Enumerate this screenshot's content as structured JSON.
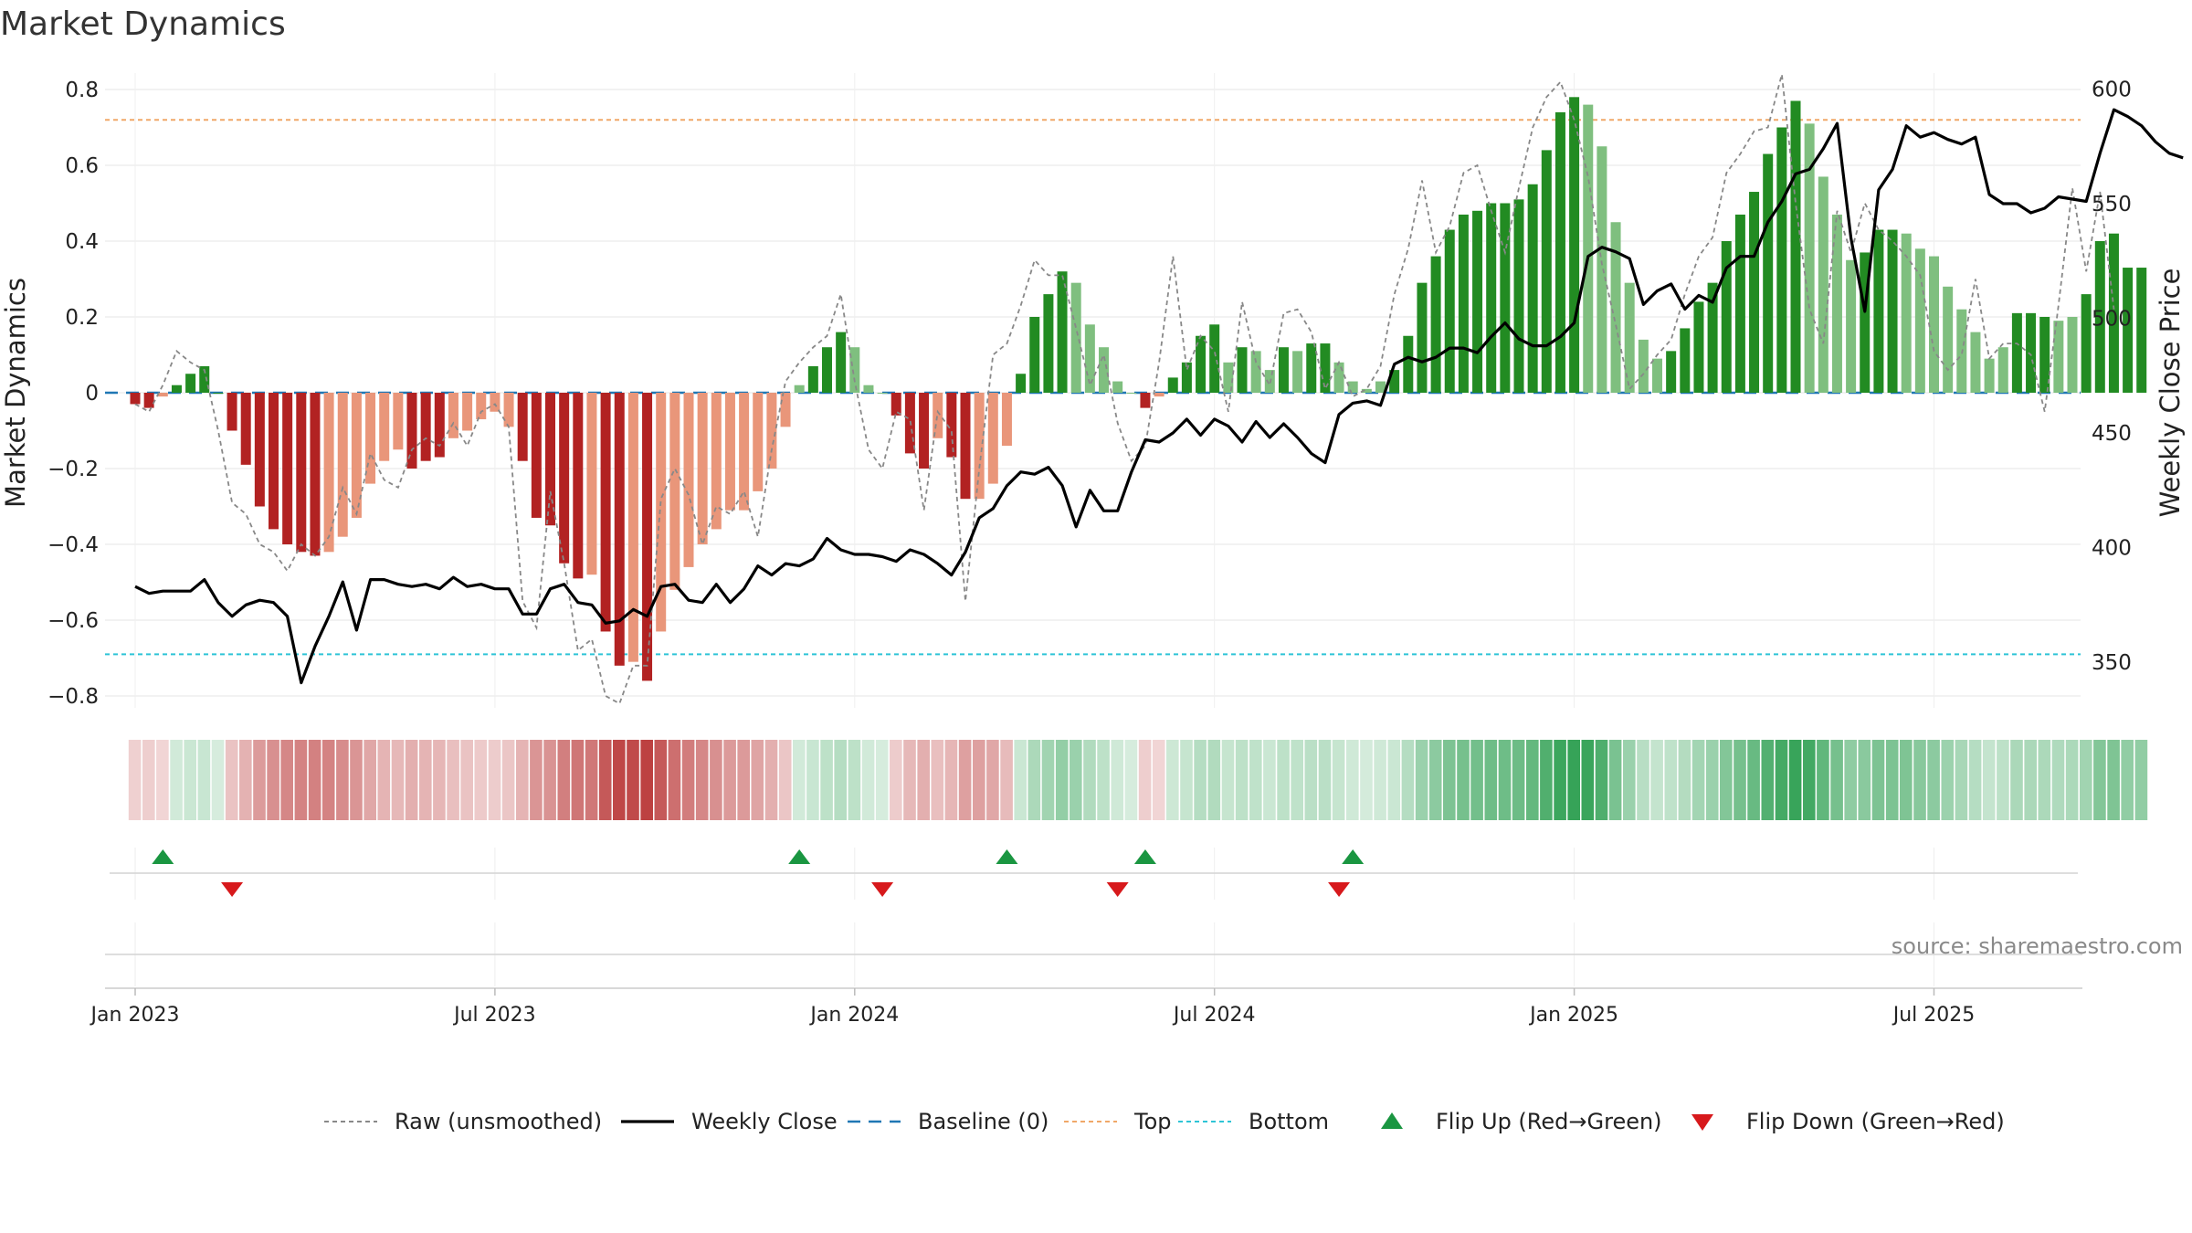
{
  "title": "Market Dynamics",
  "source": "source: sharemaestro.com",
  "chart_data": {
    "type": "bar",
    "title": "Market Dynamics",
    "ylabel": "Market Dynamics",
    "y2label": "Weekly Close Price",
    "ylim": [
      -0.85,
      0.83
    ],
    "y2lim": [
      335,
      606
    ],
    "yticks": [
      -0.8,
      -0.6,
      -0.4,
      -0.2,
      0,
      0.2,
      0.4,
      0.6,
      0.8
    ],
    "ytick_labels": [
      "−0.8",
      "−0.6",
      "−0.4",
      "−0.2",
      "0",
      "0.2",
      "0.4",
      "0.6",
      "0.8"
    ],
    "y2ticks": [
      350,
      400,
      450,
      500,
      550,
      600
    ],
    "xticks": [
      "Jan 2023",
      "Jul 2023",
      "Jan 2024",
      "Jul 2024",
      "Jan 2025",
      "Jul 2025"
    ],
    "xtick_weeks": [
      0,
      26,
      52,
      78,
      104,
      130
    ],
    "x_start": "2022-12-26",
    "top_level": 0.72,
    "bottom_level": -0.69,
    "baseline": 0,
    "grid": true,
    "legend_position": "bottom",
    "colors": {
      "strong_green": "#228B22",
      "light_green": "#7FBF7F",
      "strong_red": "#B22222",
      "light_red": "#E9967A",
      "price": "#000000",
      "raw": "#888888",
      "baseline": "#1f77b4",
      "top": "#f0a868",
      "bottom": "#2ec4d6",
      "flip_up": "#1a9641",
      "flip_down": "#d7191c"
    },
    "series": [
      {
        "name": "Market Dynamics",
        "values": [
          -0.03,
          -0.04,
          -0.01,
          0.02,
          0.05,
          0.07,
          0.0,
          -0.1,
          -0.19,
          -0.3,
          -0.36,
          -0.4,
          -0.42,
          -0.43,
          -0.42,
          -0.38,
          -0.33,
          -0.24,
          -0.18,
          -0.15,
          -0.2,
          -0.18,
          -0.17,
          -0.12,
          -0.1,
          -0.07,
          -0.05,
          -0.09,
          -0.18,
          -0.33,
          -0.35,
          -0.45,
          -0.49,
          -0.48,
          -0.63,
          -0.72,
          -0.71,
          -0.76,
          -0.63,
          -0.52,
          -0.46,
          -0.4,
          -0.36,
          -0.31,
          -0.31,
          -0.26,
          -0.2,
          -0.09,
          0.02,
          0.07,
          0.12,
          0.16,
          0.12,
          0.02,
          0.0,
          -0.06,
          -0.16,
          -0.2,
          -0.12,
          -0.17,
          -0.28,
          -0.28,
          -0.24,
          -0.14,
          0.05,
          0.2,
          0.26,
          0.32,
          0.29,
          0.18,
          0.12,
          0.03,
          0.0,
          -0.04,
          -0.01,
          0.04,
          0.08,
          0.15,
          0.18,
          0.08,
          0.12,
          0.11,
          0.06,
          0.12,
          0.11,
          0.13,
          0.13,
          0.08,
          0.03,
          0.01,
          0.03,
          0.06,
          0.15,
          0.29,
          0.36,
          0.43,
          0.47,
          0.48,
          0.5,
          0.5,
          0.51,
          0.55,
          0.64,
          0.74,
          0.78,
          0.76,
          0.65,
          0.45,
          0.29,
          0.14,
          0.09,
          0.11,
          0.17,
          0.24,
          0.29,
          0.4,
          0.47,
          0.53,
          0.63,
          0.7,
          0.77,
          0.71,
          0.57,
          0.47,
          0.35,
          0.37,
          0.43,
          0.43,
          0.42,
          0.38,
          0.36,
          0.28,
          0.22,
          0.16,
          0.09,
          0.12,
          0.21,
          0.21,
          0.2,
          0.19,
          0.2,
          0.26,
          0.4,
          0.42,
          0.33,
          0.33
        ],
        "colors": [
          "R",
          "R",
          "r",
          "G",
          "G",
          "G",
          "G",
          "R",
          "R",
          "R",
          "R",
          "R",
          "R",
          "R",
          "r",
          "r",
          "r",
          "r",
          "r",
          "r",
          "R",
          "R",
          "R",
          "r",
          "r",
          "r",
          "r",
          "r",
          "R",
          "R",
          "R",
          "R",
          "R",
          "r",
          "R",
          "R",
          "r",
          "R",
          "r",
          "r",
          "r",
          "r",
          "r",
          "r",
          "r",
          "r",
          "r",
          "r",
          "g",
          "G",
          "G",
          "G",
          "g",
          "g",
          "g",
          "R",
          "R",
          "R",
          "r",
          "R",
          "R",
          "r",
          "r",
          "r",
          "G",
          "G",
          "G",
          "G",
          "g",
          "g",
          "g",
          "g",
          "g",
          "R",
          "r",
          "G",
          "G",
          "G",
          "G",
          "g",
          "G",
          "g",
          "g",
          "G",
          "g",
          "G",
          "G",
          "g",
          "g",
          "g",
          "g",
          "G",
          "G",
          "G",
          "G",
          "G",
          "G",
          "G",
          "G",
          "G",
          "G",
          "G",
          "G",
          "G",
          "G",
          "g",
          "g",
          "g",
          "g",
          "g",
          "g",
          "G",
          "G",
          "G",
          "G",
          "G",
          "G",
          "G",
          "G",
          "G",
          "G",
          "g",
          "g",
          "g",
          "g",
          "G",
          "G",
          "G",
          "g",
          "g",
          "g",
          "g",
          "g",
          "g",
          "g",
          "g",
          "G",
          "G",
          "G",
          "g",
          "g",
          "G",
          "G",
          "G",
          "G",
          "G",
          "g",
          "G"
        ]
      },
      {
        "name": "Raw (unsmoothed)",
        "values": [
          -0.03,
          -0.05,
          0.02,
          0.11,
          0.08,
          0.06,
          -0.1,
          -0.29,
          -0.32,
          -0.4,
          -0.42,
          -0.47,
          -0.4,
          -0.43,
          -0.38,
          -0.25,
          -0.32,
          -0.16,
          -0.23,
          -0.25,
          -0.15,
          -0.12,
          -0.14,
          -0.08,
          -0.14,
          -0.05,
          -0.03,
          -0.09,
          -0.55,
          -0.62,
          -0.26,
          -0.45,
          -0.68,
          -0.65,
          -0.8,
          -0.82,
          -0.72,
          -0.72,
          -0.28,
          -0.2,
          -0.27,
          -0.4,
          -0.3,
          -0.32,
          -0.26,
          -0.38,
          -0.15,
          0.03,
          0.08,
          0.12,
          0.15,
          0.26,
          0.03,
          -0.15,
          -0.2,
          -0.05,
          -0.07,
          -0.31,
          -0.05,
          -0.1,
          -0.55,
          -0.2,
          0.1,
          0.13,
          0.23,
          0.35,
          0.31,
          0.31,
          0.17,
          0.02,
          0.1,
          -0.08,
          -0.18,
          -0.14,
          0.08,
          0.36,
          0.06,
          0.15,
          0.11,
          -0.05,
          0.24,
          0.08,
          0.02,
          0.21,
          0.22,
          0.16,
          0.01,
          0.08,
          -0.01,
          0.01,
          0.07,
          0.26,
          0.38,
          0.56,
          0.37,
          0.44,
          0.58,
          0.6,
          0.48,
          0.37,
          0.54,
          0.7,
          0.78,
          0.82,
          0.72,
          0.57,
          0.34,
          0.18,
          0.01,
          0.05,
          0.1,
          0.14,
          0.26,
          0.36,
          0.41,
          0.58,
          0.63,
          0.69,
          0.7,
          0.84,
          0.5,
          0.22,
          0.13,
          0.48,
          0.37,
          0.5,
          0.43,
          0.4,
          0.36,
          0.31,
          0.11,
          0.06,
          0.1,
          0.3,
          0.09,
          0.13,
          0.13,
          0.1,
          -0.05,
          0.23,
          0.54,
          0.32,
          0.53,
          0.22
        ],
        "color": "#888888"
      },
      {
        "name": "Weekly Close",
        "values": [
          383,
          380,
          381,
          381,
          381,
          386,
          376,
          370,
          375,
          377,
          376,
          370,
          341,
          357,
          370,
          385,
          364,
          386,
          386,
          384,
          383,
          384,
          382,
          387,
          383,
          384,
          382,
          382,
          371,
          371,
          382,
          384,
          376,
          375,
          367,
          368,
          373,
          370,
          383,
          384,
          377,
          376,
          384,
          376,
          382,
          392,
          388,
          393,
          392,
          395,
          404,
          399,
          397,
          397,
          396,
          394,
          399,
          397,
          393,
          388,
          398,
          413,
          417,
          427,
          433,
          432,
          435,
          427,
          409,
          425,
          416,
          416,
          433,
          447,
          446,
          450,
          456,
          449,
          456,
          453,
          446,
          455,
          448,
          454,
          448,
          441,
          437,
          458,
          463,
          464,
          462,
          480,
          483,
          481,
          483,
          487,
          487,
          485,
          492,
          498,
          491,
          488,
          488,
          492,
          498,
          527,
          531,
          529,
          526,
          506,
          512,
          515,
          504,
          510,
          507,
          522,
          527,
          527,
          542,
          551,
          563,
          565,
          574,
          585,
          535,
          503,
          556,
          565,
          584,
          579,
          581,
          578,
          576,
          579,
          554,
          550,
          550,
          546,
          548,
          553,
          552,
          551,
          572,
          591,
          588,
          584,
          577,
          572,
          570
        ],
        "color": "#000000"
      }
    ],
    "flip_up_weeks": [
      2,
      48,
      63,
      73,
      88
    ],
    "flip_down_weeks": [
      7,
      54,
      71,
      87
    ],
    "legend": [
      {
        "label": "Raw (unsmoothed)",
        "kind": "raw"
      },
      {
        "label": "Weekly Close",
        "kind": "price"
      },
      {
        "label": "Baseline (0)",
        "kind": "baseline"
      },
      {
        "label": "Top",
        "kind": "top"
      },
      {
        "label": "Bottom",
        "kind": "bottom"
      },
      {
        "label": "Flip Up (Red→Green)",
        "kind": "flip_up"
      },
      {
        "label": "Flip Down (Green→Red)",
        "kind": "flip_down"
      }
    ]
  }
}
